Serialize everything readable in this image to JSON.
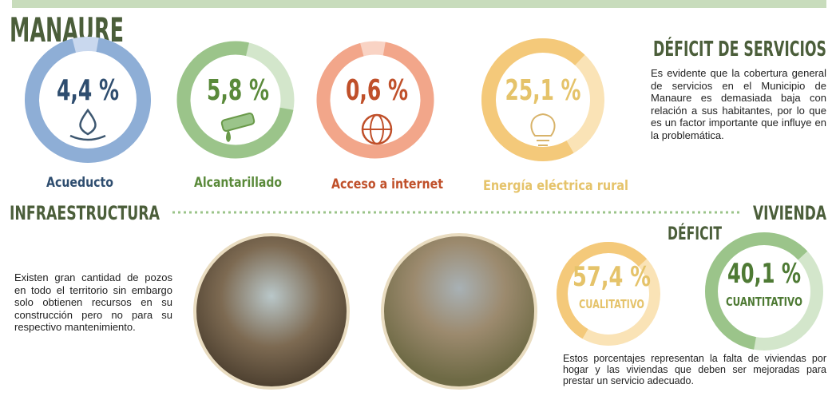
{
  "title": "MANAURE",
  "services": [
    {
      "value": "4,4 %",
      "label": "Acueducto"
    },
    {
      "value": "5,8 %",
      "label": "Alcantarillado"
    },
    {
      "value": "0,6 %",
      "label": "Acceso a internet"
    },
    {
      "value": "25,1 %",
      "label": "Energía eléctrica rural"
    }
  ],
  "deficit_services": {
    "title": "DÉFICIT DE SERVICIOS",
    "text": "Es evidente que la cobertura general de servicios en el Municipio de Manaure es demasiada baja con relación a sus habitantes, por lo que es un factor importante que influye en la problemática."
  },
  "infrastructure": {
    "title": "INFRAESTRUCTURA",
    "text": "Existen gran cantidad de pozos en todo el territorio sin embargo solo obtienen recursos en su construcción pero no para su respectivo mantenimiento."
  },
  "housing": {
    "title": "VIVIENDA",
    "subtitle": "DÉFICIT",
    "items": [
      {
        "value": "57,4 %",
        "label": "CUALITATIVO"
      },
      {
        "value": "40,1 %",
        "label": "CUANTITATIVO"
      }
    ],
    "text": "Estos porcentajes representan la falta de viviendas por hogar y las viviendas que deben ser mejoradas para prestar un servicio adecuado."
  }
}
